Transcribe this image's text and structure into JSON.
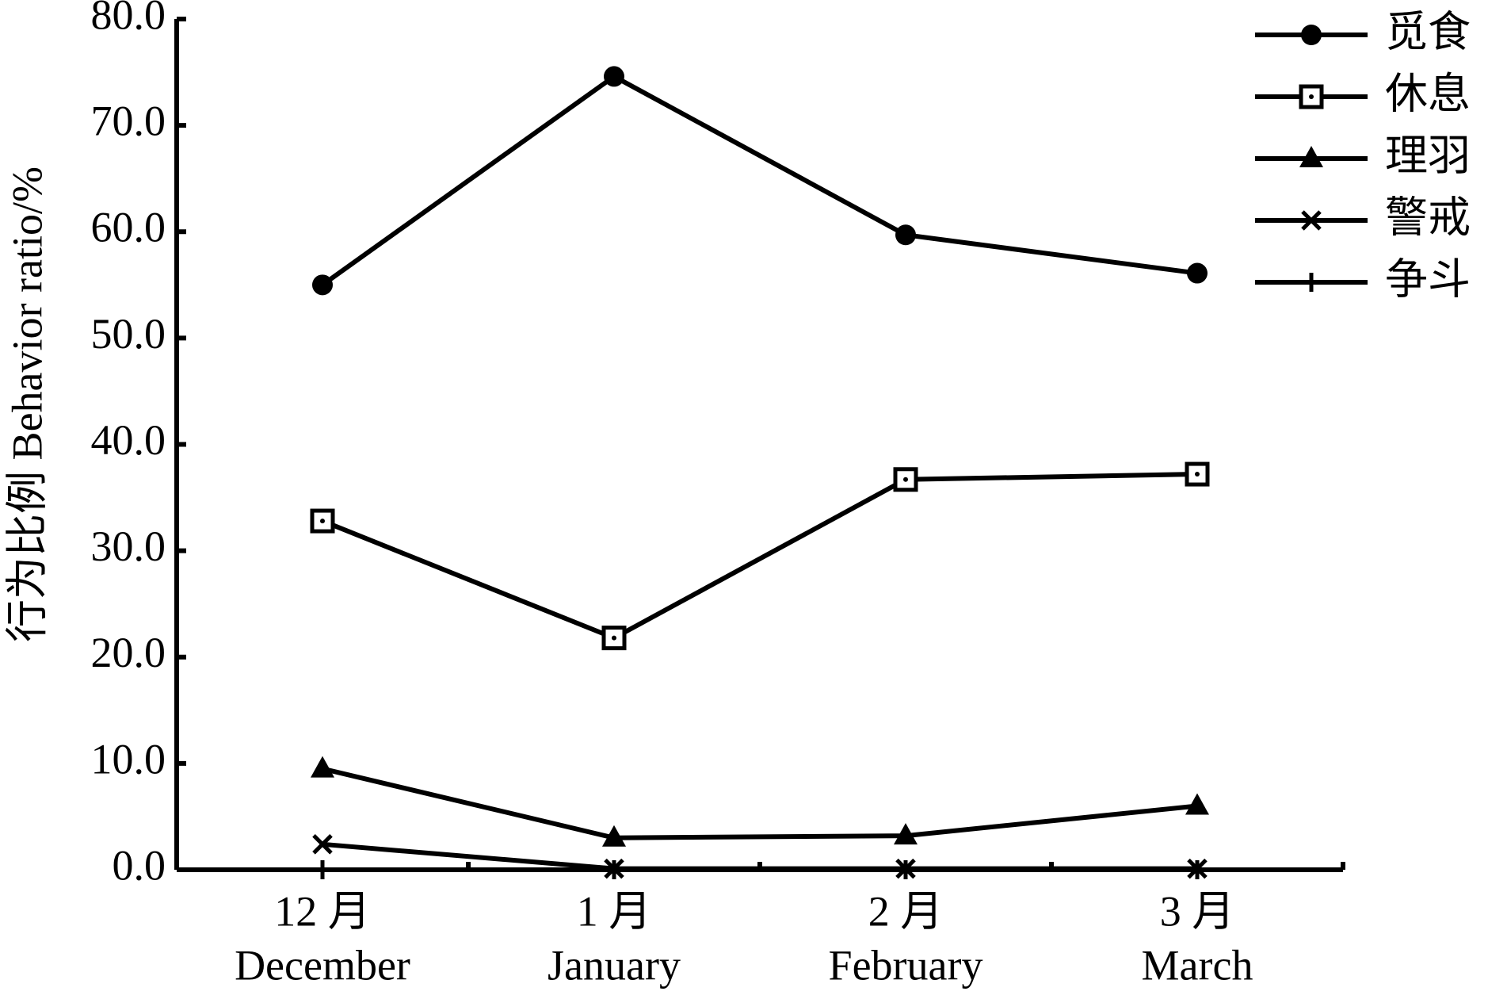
{
  "chart_data": {
    "type": "line",
    "y_label": "行为比例 Behavior ratio/%",
    "categories": [
      "12 月",
      "1 月",
      "2 月",
      "3 月"
    ],
    "categories_en": [
      "December",
      "January",
      "February",
      "March"
    ],
    "series": [
      {
        "name": "觅食",
        "color": "#000000",
        "marker": "circle",
        "values": [
          55.0,
          74.6,
          59.7,
          56.1
        ]
      },
      {
        "name": "休息",
        "color": "#000000",
        "marker": "square",
        "values": [
          32.8,
          21.8,
          36.7,
          37.2
        ]
      },
      {
        "name": "理羽",
        "color": "#000000",
        "marker": "triangle",
        "values": [
          9.5,
          3.0,
          3.2,
          6.0
        ]
      },
      {
        "name": "警戒",
        "color": "#000000",
        "marker": "x",
        "values": [
          2.4,
          0.1,
          0.1,
          0.1
        ]
      },
      {
        "name": "争斗",
        "color": "#000000",
        "marker": "plus",
        "values": [
          0,
          0,
          0,
          0
        ]
      }
    ],
    "ylim": [
      0,
      80
    ],
    "yticks": [
      {
        "value": 0,
        "label": "0.0"
      },
      {
        "value": 10,
        "label": "10.0"
      },
      {
        "value": 20,
        "label": "20.0"
      },
      {
        "value": 30,
        "label": "30.0"
      },
      {
        "value": 40,
        "label": "40.0"
      },
      {
        "value": 50,
        "label": "50.0"
      },
      {
        "value": 60,
        "label": "60.0"
      },
      {
        "value": 70,
        "label": "70.0"
      },
      {
        "value": 80,
        "label": "80.0"
      }
    ],
    "grid": false,
    "legend": "top-right"
  }
}
